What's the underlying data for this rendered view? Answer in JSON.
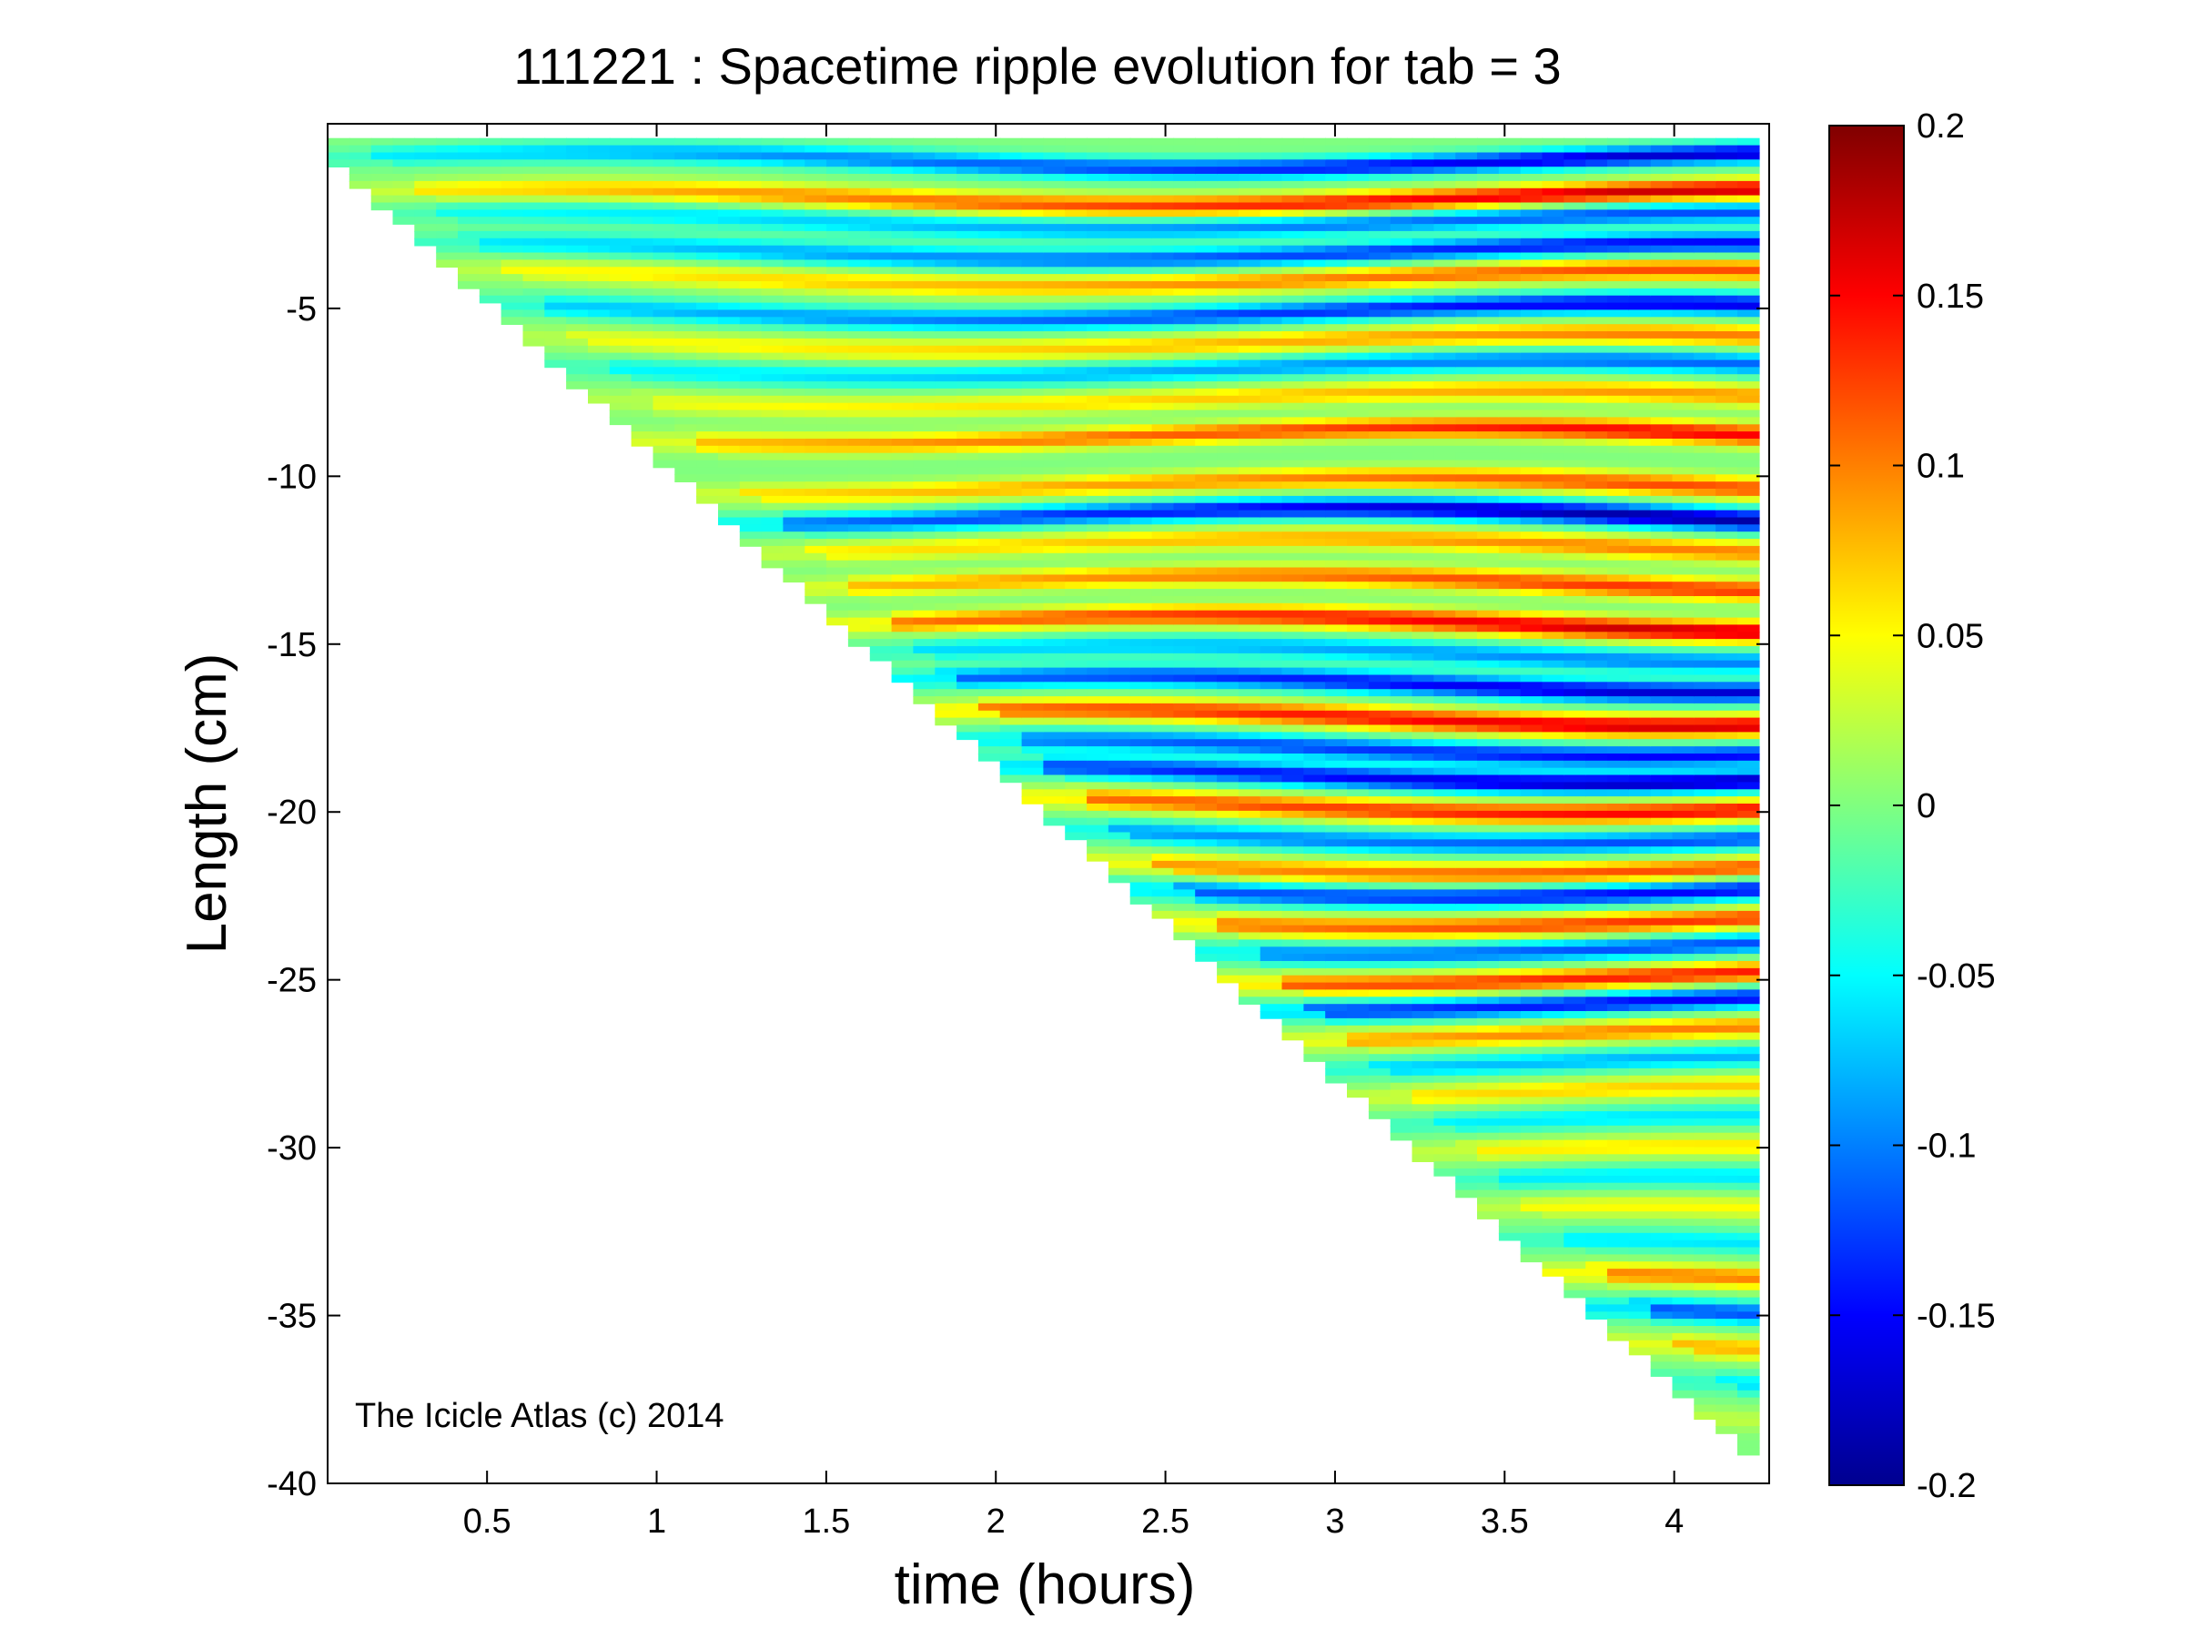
{
  "chart_data": {
    "type": "heatmap",
    "title": "111221 : Spacetime ripple evolution for tab = 3",
    "xlabel": "time (hours)",
    "ylabel": "Length (cm)",
    "xlim": [
      0.03,
      4.28
    ],
    "ylim": [
      -40,
      0.5
    ],
    "xticks": [
      0.5,
      1,
      1.5,
      2,
      2.5,
      3,
      3.5,
      4
    ],
    "xtick_labels": [
      "0.5",
      "1",
      "1.5",
      "2",
      "2.5",
      "3",
      "3.5",
      "4"
    ],
    "yticks": [
      -5,
      -10,
      -15,
      -20,
      -25,
      -30,
      -35,
      -40
    ],
    "ytick_labels": [
      "-5",
      "-10",
      "-15",
      "-20",
      "-25",
      "-30",
      "-35",
      "-40"
    ],
    "grid": false,
    "colormap": "jet",
    "clim": [
      -0.2,
      0.2
    ],
    "colorbar_ticks": [
      0.2,
      0.15,
      0.1,
      0.05,
      0,
      -0.05,
      -0.1,
      -0.15,
      -0.2
    ],
    "colorbar_tick_labels": [
      "0.2",
      "0.15",
      "0.1",
      "0.05",
      "0",
      "-0.05",
      "-0.1",
      "-0.15",
      "-0.2"
    ],
    "growth_front": {
      "t_start": 0.03,
      "t_end": 4.25,
      "length_start": 0,
      "length_end": -39
    },
    "bands": [
      {
        "length": -0.6,
        "value": -0.17
      },
      {
        "length": -1.7,
        "value": 0.17
      },
      {
        "length": -2.4,
        "value": -0.12
      },
      {
        "length": -3.3,
        "value": -0.15
      },
      {
        "length": -4.1,
        "value": 0.12
      },
      {
        "length": -5.1,
        "value": -0.16
      },
      {
        "length": -6.0,
        "value": 0.1
      },
      {
        "length": -6.8,
        "value": -0.11
      },
      {
        "length": -7.7,
        "value": 0.09
      },
      {
        "length": -8.8,
        "value": 0.15
      },
      {
        "length": -10.3,
        "value": 0.12
      },
      {
        "length": -11.2,
        "value": -0.19
      },
      {
        "length": -12.1,
        "value": 0.1
      },
      {
        "length": -13.2,
        "value": 0.13
      },
      {
        "length": -14.4,
        "value": 0.17
      },
      {
        "length": -15.3,
        "value": -0.1
      },
      {
        "length": -16.2,
        "value": -0.17
      },
      {
        "length": -17.2,
        "value": 0.17
      },
      {
        "length": -18.1,
        "value": -0.15
      },
      {
        "length": -18.9,
        "value": -0.18
      },
      {
        "length": -19.8,
        "value": 0.15
      },
      {
        "length": -20.7,
        "value": -0.12
      },
      {
        "length": -21.6,
        "value": 0.12
      },
      {
        "length": -22.3,
        "value": -0.15
      },
      {
        "length": -23.2,
        "value": 0.13
      },
      {
        "length": -24.0,
        "value": -0.12
      },
      {
        "length": -24.9,
        "value": 0.14
      },
      {
        "length": -25.7,
        "value": -0.15
      },
      {
        "length": -26.6,
        "value": 0.1
      },
      {
        "length": -27.5,
        "value": -0.08
      },
      {
        "length": -28.4,
        "value": 0.07
      },
      {
        "length": -29.3,
        "value": -0.06
      },
      {
        "length": -30.2,
        "value": 0.06
      },
      {
        "length": -31.1,
        "value": -0.06
      },
      {
        "length": -32.0,
        "value": 0.05
      },
      {
        "length": -33.0,
        "value": -0.06
      },
      {
        "length": -34.0,
        "value": 0.1
      },
      {
        "length": -35.0,
        "value": -0.12
      },
      {
        "length": -36.0,
        "value": 0.08
      },
      {
        "length": -37.0,
        "value": -0.06
      },
      {
        "length": -38.0,
        "value": 0.05
      }
    ]
  },
  "watermark": "The Icicle Atlas (c) 2014"
}
